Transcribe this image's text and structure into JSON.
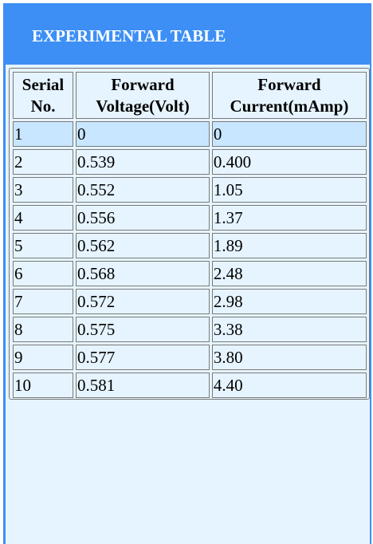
{
  "header": {
    "title": "EXPERIMENTAL TABLE"
  },
  "table": {
    "columns": [
      [
        "Serial",
        "No."
      ],
      [
        "Forward",
        "Voltage(Volt)"
      ],
      [
        "Forward",
        "Current(mAmp)"
      ]
    ],
    "rows": [
      [
        "1",
        "0",
        "0"
      ],
      [
        "2",
        "0.539",
        "0.400"
      ],
      [
        "3",
        "0.552",
        "1.05"
      ],
      [
        "4",
        "0.556",
        "1.37"
      ],
      [
        "5",
        "0.562",
        "1.89"
      ],
      [
        "6",
        "0.568",
        "2.48"
      ],
      [
        "7",
        "0.572",
        "2.98"
      ],
      [
        "8",
        "0.575",
        "3.38"
      ],
      [
        "9",
        "0.577",
        "3.80"
      ],
      [
        "10",
        "0.581",
        "4.40"
      ]
    ],
    "highlighted_row": 1
  },
  "colors": {
    "header_bg": "#3d8ff5",
    "panel_bg": "#e6f4ff",
    "highlight_row_bg": "#c8e6ff",
    "header_text": "#ffffff"
  }
}
